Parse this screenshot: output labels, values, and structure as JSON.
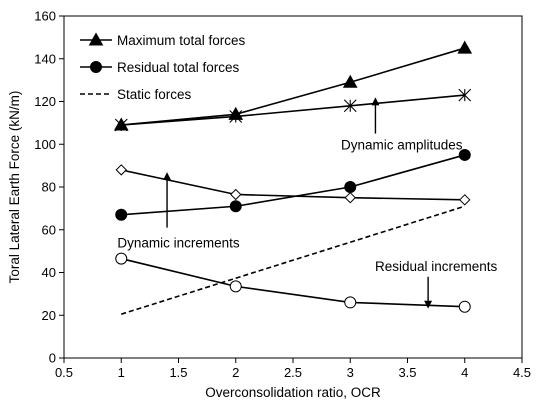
{
  "chart_data": {
    "type": "line",
    "title": "",
    "xlabel": "Overconsolidation ratio, OCR",
    "ylabel": "Toral Lateral Earth Force (kN/m)",
    "xlim": [
      0.5,
      4.5
    ],
    "ylim": [
      0,
      160
    ],
    "x_ticks": [
      "0.5",
      "1",
      "1.5",
      "2",
      "2.5",
      "3",
      "3.5",
      "4",
      "4.5"
    ],
    "y_ticks": [
      "0",
      "20",
      "40",
      "60",
      "80",
      "100",
      "120",
      "140",
      "160"
    ],
    "grid": false,
    "legend_position": "top-left",
    "series": [
      {
        "name": "Maximum total forces",
        "marker": "triangle-filled",
        "line": "solid",
        "x": [
          1,
          2,
          3,
          4
        ],
        "y": [
          109,
          114,
          129,
          145
        ]
      },
      {
        "name": "Residual total forces",
        "marker": "circle-filled",
        "line": "solid",
        "x": [
          1,
          2,
          3,
          4
        ],
        "y": [
          67,
          71,
          80,
          95
        ]
      },
      {
        "name": "Static forces",
        "marker": "none",
        "line": "dashed",
        "x": [
          1,
          4
        ],
        "y": [
          20.5,
          71
        ]
      },
      {
        "name": "",
        "marker": "star",
        "line": "solid",
        "x": [
          1,
          2,
          3,
          4
        ],
        "y": [
          109,
          113,
          118,
          123
        ]
      },
      {
        "name": "",
        "marker": "diamond-open",
        "line": "solid",
        "x": [
          1,
          2,
          3,
          4
        ],
        "y": [
          88,
          76.5,
          75,
          74
        ]
      },
      {
        "name": "",
        "marker": "circle-open",
        "line": "solid",
        "x": [
          1,
          2,
          3,
          4
        ],
        "y": [
          46.5,
          33.5,
          26,
          24
        ]
      }
    ],
    "annotations": [
      {
        "text": "Dynamic amplitudes",
        "x": 3.45,
        "y": 100,
        "arrow_from": [
          3.22,
          105
        ],
        "arrow_to": [
          3.22,
          121
        ]
      },
      {
        "text": "Dynamic increments",
        "x": 1.5,
        "y": 54,
        "arrow_from": [
          1.4,
          61
        ],
        "arrow_to": [
          1.4,
          86
        ]
      },
      {
        "text": "Residual increments",
        "x": 3.75,
        "y": 43,
        "arrow_from": [
          3.68,
          38
        ],
        "arrow_to": [
          3.68,
          24
        ]
      }
    ]
  }
}
